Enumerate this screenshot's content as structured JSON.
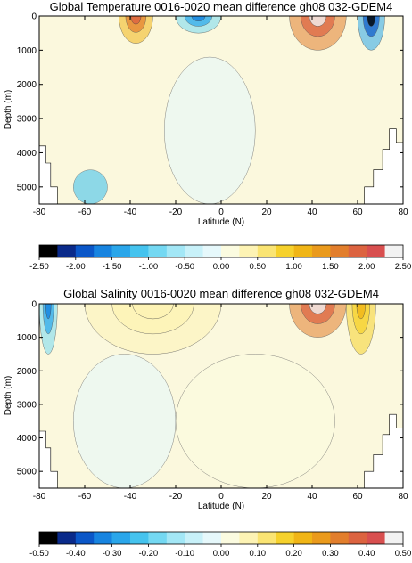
{
  "chart_data": [
    {
      "type": "heatmap",
      "title": "Global Temperature 0016-0020 mean difference gh08  032-GDEM4",
      "xlabel": "Latitude (N)",
      "ylabel": "Depth (m)",
      "xlim": [
        -80,
        80
      ],
      "ylim": [
        5500,
        0
      ],
      "xticks": [
        "-80",
        "-60",
        "-40",
        "-20",
        "0",
        "20",
        "40",
        "60",
        "80"
      ],
      "yticks": [
        "0",
        "1000",
        "2000",
        "3000",
        "4000",
        "5000"
      ],
      "colorbar": {
        "levels": [
          -2.5,
          -2.25,
          -2.0,
          -1.75,
          -1.5,
          -1.25,
          -1.0,
          -0.75,
          -0.5,
          -0.25,
          0.0,
          0.25,
          0.5,
          0.75,
          1.0,
          1.25,
          1.5,
          1.75,
          2.0,
          2.25,
          2.5
        ],
        "tick_labels": [
          "-2.50",
          "-2.00",
          "-1.50",
          "-1.00",
          "-0.50",
          "0.00",
          "0.50",
          "1.00",
          "1.50",
          "2.00",
          "2.50"
        ]
      },
      "features": [
        {
          "lat_range": [
            -45,
            -30
          ],
          "depth_range": [
            0,
            800
          ],
          "value": 1.2
        },
        {
          "lat_range": [
            -20,
            0
          ],
          "depth_range": [
            0,
            500
          ],
          "value": -1.0
        },
        {
          "lat_range": [
            30,
            55
          ],
          "depth_range": [
            0,
            1000
          ],
          "value": 1.5
        },
        {
          "lat_range": [
            60,
            72
          ],
          "depth_range": [
            0,
            1000
          ],
          "value": -1.5
        },
        {
          "lat_range": [
            -65,
            -50
          ],
          "depth_range": [
            4500,
            5500
          ],
          "value": -1.2
        },
        {
          "lat_range": [
            -25,
            15
          ],
          "depth_range": [
            1200,
            5500
          ],
          "value": -0.25
        }
      ]
    },
    {
      "type": "heatmap",
      "title": "Global Salinity 0016-0020 mean difference gh08 032-GDEM4",
      "xlabel": "Latitude (N)",
      "ylabel": "Depth (m)",
      "xlim": [
        -80,
        80
      ],
      "ylim": [
        5500,
        0
      ],
      "xticks": [
        "-80",
        "-60",
        "-40",
        "-20",
        "0",
        "20",
        "40",
        "60",
        "80"
      ],
      "yticks": [
        "0",
        "1000",
        "2000",
        "3000",
        "4000",
        "5000"
      ],
      "colorbar": {
        "levels": [
          -0.5,
          -0.45,
          -0.4,
          -0.35,
          -0.3,
          -0.25,
          -0.2,
          -0.15,
          -0.1,
          -0.05,
          0.0,
          0.05,
          0.1,
          0.15,
          0.2,
          0.25,
          0.3,
          0.35,
          0.4,
          0.45,
          0.5
        ],
        "tick_labels": [
          "-0.50",
          "-0.40",
          "-0.30",
          "-0.20",
          "-0.10",
          "0.00",
          "0.10",
          "0.20",
          "0.30",
          "0.40",
          "0.50"
        ]
      },
      "features": [
        {
          "lat_range": [
            -80,
            -72
          ],
          "depth_range": [
            0,
            1500
          ],
          "value": -0.2
        },
        {
          "lat_range": [
            30,
            55
          ],
          "depth_range": [
            0,
            1000
          ],
          "value": 0.3
        },
        {
          "lat_range": [
            55,
            68
          ],
          "depth_range": [
            0,
            1500
          ],
          "value": 0.15
        },
        {
          "lat_range": [
            -60,
            0
          ],
          "depth_range": [
            0,
            1500
          ],
          "value": 0.05
        },
        {
          "lat_range": [
            -65,
            -20
          ],
          "depth_range": [
            1500,
            5500
          ],
          "value": -0.03
        },
        {
          "lat_range": [
            -20,
            50
          ],
          "depth_range": [
            1500,
            5500
          ],
          "value": 0.03
        }
      ]
    }
  ],
  "colors": [
    "#000000",
    "#0a2a8a",
    "#0b57c8",
    "#1784e0",
    "#2aa6ea",
    "#45c3ee",
    "#74d8f2",
    "#a3e7f6",
    "#c8f1f9",
    "#e6f8fb",
    "#fbfbe0",
    "#fdf3b4",
    "#fae473",
    "#f6d12c",
    "#f0b516",
    "#ea9a1c",
    "#e27e2c",
    "#dc6340",
    "#d84f4f",
    "#f2f2f2"
  ]
}
